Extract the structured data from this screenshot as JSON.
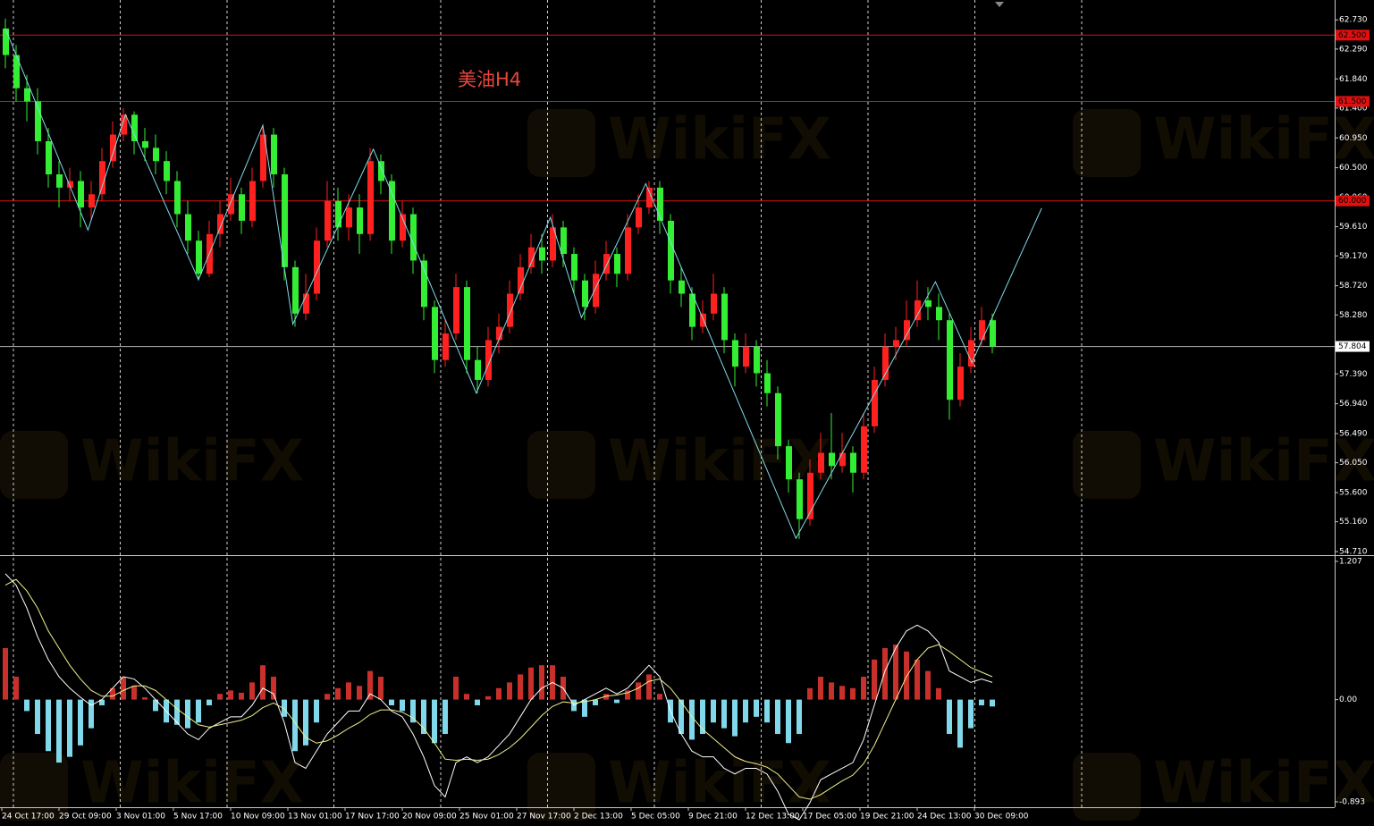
{
  "chart_data": [
    {
      "type": "candlestick",
      "title": "美油H4",
      "watermark": "WikiFX",
      "ylim": [
        54.67,
        63.03
      ],
      "yticks": [
        {
          "value": 62.73,
          "label": "62.730"
        },
        {
          "value": 62.29,
          "label": "62.290"
        },
        {
          "value": 61.84,
          "label": "61.840"
        },
        {
          "value": 61.4,
          "label": "61.400"
        },
        {
          "value": 60.95,
          "label": "60.950"
        },
        {
          "value": 60.5,
          "label": "60.500"
        },
        {
          "value": 60.06,
          "label": "60.060"
        },
        {
          "value": 59.61,
          "label": "59.610"
        },
        {
          "value": 59.17,
          "label": "59.170"
        },
        {
          "value": 58.72,
          "label": "58.720"
        },
        {
          "value": 58.28,
          "label": "58.280"
        },
        {
          "value": 57.39,
          "label": "57.390"
        },
        {
          "value": 56.94,
          "label": "56.940"
        },
        {
          "value": 56.49,
          "label": "56.490"
        },
        {
          "value": 56.05,
          "label": "56.050"
        },
        {
          "value": 55.6,
          "label": "55.600"
        },
        {
          "value": 55.16,
          "label": "55.160"
        },
        {
          "value": 54.71,
          "label": "54.710"
        }
      ],
      "levels": [
        {
          "value": 62.5,
          "label": "62.500"
        },
        {
          "value": 61.5,
          "label": "61.500"
        },
        {
          "value": 60.0,
          "label": "60.000"
        }
      ],
      "level_color": "#e01010",
      "current_price": {
        "value": 57.804,
        "label": "57.804"
      },
      "up_color": "#ff2020",
      "down_color": "#33ee33",
      "open": [
        62.6,
        62.2,
        61.7,
        61.5,
        60.9,
        60.4,
        60.2,
        60.3,
        59.9,
        60.1,
        60.6,
        61.0,
        61.3,
        60.9,
        60.8,
        60.6,
        60.3,
        59.8,
        59.4,
        58.9,
        59.5,
        59.8,
        60.1,
        59.7,
        60.3,
        61.0,
        60.4,
        59.0,
        58.3,
        58.6,
        59.4,
        60.0,
        59.6,
        59.9,
        59.5,
        60.6,
        60.3,
        59.4,
        59.8,
        59.1,
        58.4,
        57.6,
        58.0,
        58.7,
        57.6,
        57.3,
        57.9,
        58.1,
        58.6,
        59.0,
        59.3,
        59.1,
        59.6,
        59.2,
        58.8,
        58.4,
        58.9,
        59.2,
        58.9,
        59.6,
        59.9,
        60.2,
        59.7,
        58.8,
        58.6,
        58.1,
        58.3,
        58.6,
        57.9,
        57.5,
        57.8,
        57.4,
        57.1,
        56.3,
        55.8,
        55.2,
        55.9,
        56.2,
        56.0,
        56.2,
        55.9,
        56.6,
        57.3,
        57.8,
        57.9,
        58.2,
        58.5,
        58.4,
        58.2,
        57.0,
        57.5,
        57.9,
        58.2
      ],
      "high": [
        62.75,
        62.35,
        61.9,
        61.7,
        61.1,
        60.6,
        60.5,
        60.45,
        60.3,
        60.8,
        61.2,
        61.4,
        61.35,
        61.1,
        61.0,
        60.75,
        60.45,
        60.0,
        59.55,
        59.7,
        60.0,
        60.35,
        60.2,
        60.5,
        61.15,
        61.1,
        60.5,
        59.1,
        58.9,
        59.6,
        60.3,
        60.2,
        60.1,
        60.1,
        60.8,
        60.7,
        60.4,
        60.0,
        59.9,
        59.2,
        58.5,
        58.2,
        58.9,
        58.8,
        57.8,
        58.1,
        58.3,
        58.8,
        59.2,
        59.5,
        59.5,
        59.8,
        59.7,
        59.3,
        58.9,
        59.1,
        59.4,
        59.3,
        59.8,
        60.1,
        60.3,
        60.3,
        59.8,
        59.0,
        58.7,
        58.5,
        58.9,
        58.7,
        58.0,
        58.0,
        57.9,
        57.6,
        57.2,
        56.4,
        55.9,
        56.1,
        56.5,
        56.8,
        56.5,
        56.3,
        56.8,
        57.5,
        58.0,
        58.1,
        58.5,
        58.8,
        58.7,
        58.6,
        58.3,
        57.7,
        58.1,
        58.4,
        58.3
      ],
      "low": [
        62.0,
        61.5,
        61.2,
        60.7,
        60.2,
        59.9,
        60.0,
        59.6,
        59.7,
        60.0,
        60.5,
        60.9,
        60.7,
        60.6,
        60.4,
        60.1,
        59.6,
        59.2,
        58.8,
        58.85,
        59.3,
        59.7,
        59.5,
        59.6,
        60.2,
        60.2,
        58.8,
        58.1,
        58.2,
        58.5,
        59.3,
        59.4,
        59.4,
        59.2,
        59.4,
        60.1,
        59.2,
        59.3,
        58.9,
        58.2,
        57.4,
        57.5,
        57.9,
        57.4,
        57.1,
        57.2,
        57.7,
        58.0,
        58.5,
        58.9,
        58.9,
        59.0,
        59.0,
        58.6,
        58.2,
        58.3,
        58.8,
        58.7,
        58.8,
        59.5,
        59.8,
        59.5,
        58.6,
        58.4,
        57.9,
        58.0,
        58.2,
        57.7,
        57.2,
        57.4,
        57.2,
        56.9,
        56.1,
        55.6,
        54.9,
        55.1,
        55.8,
        55.8,
        55.9,
        55.6,
        55.8,
        56.5,
        57.2,
        57.6,
        57.8,
        58.1,
        58.2,
        57.9,
        56.7,
        56.9,
        57.4,
        57.8,
        57.7
      ],
      "close": [
        62.2,
        61.7,
        61.5,
        60.9,
        60.4,
        60.2,
        60.3,
        59.9,
        60.1,
        60.6,
        61.0,
        61.3,
        60.9,
        60.8,
        60.6,
        60.3,
        59.8,
        59.4,
        58.9,
        59.5,
        59.8,
        60.1,
        59.7,
        60.3,
        61.0,
        60.4,
        59.0,
        58.3,
        58.6,
        59.4,
        60.0,
        59.6,
        59.9,
        59.5,
        60.6,
        60.3,
        59.4,
        59.8,
        59.1,
        58.4,
        57.6,
        58.0,
        58.7,
        57.6,
        57.3,
        57.9,
        58.1,
        58.6,
        59.0,
        59.3,
        59.1,
        59.6,
        59.2,
        58.8,
        58.4,
        58.9,
        59.2,
        58.9,
        59.6,
        59.9,
        60.2,
        59.7,
        58.8,
        58.6,
        58.1,
        58.3,
        58.6,
        57.9,
        57.5,
        57.8,
        57.4,
        57.1,
        56.3,
        55.8,
        55.2,
        55.9,
        56.2,
        56.0,
        56.2,
        55.9,
        56.6,
        57.3,
        57.8,
        57.9,
        58.2,
        58.5,
        58.4,
        58.2,
        57.0,
        57.5,
        57.9,
        58.2,
        57.804
      ],
      "zigzag": {
        "color": "#80dcea",
        "x": [
          0,
          7.7,
          11.2,
          18,
          24,
          26.8,
          34.3,
          43.9,
          50.8,
          53.7,
          59.7,
          73.7,
          86.7,
          90.1,
          96.6
        ],
        "values": [
          62.6,
          59.56,
          61.3,
          58.81,
          61.14,
          58.14,
          60.78,
          57.1,
          59.75,
          58.24,
          60.26,
          54.91,
          58.78,
          57.56,
          59.89
        ]
      }
    },
    {
      "type": "macd",
      "ylim": [
        -0.94,
        1.254
      ],
      "yticks": [
        {
          "value": 1.207,
          "label": "1.207"
        },
        {
          "value": 0,
          "label": "0.00"
        },
        {
          "value": -0.893,
          "label": "-0.893"
        }
      ],
      "pos_color": "#c8302c",
      "neg_color": "#80d8ea",
      "histogram": [
        0.45,
        0.2,
        -0.1,
        -0.3,
        -0.45,
        -0.55,
        -0.5,
        -0.4,
        -0.25,
        -0.05,
        0.1,
        0.2,
        0.12,
        0.02,
        -0.1,
        -0.2,
        -0.22,
        -0.25,
        -0.2,
        -0.05,
        0.05,
        0.08,
        0.06,
        0.15,
        0.3,
        0.2,
        -0.15,
        -0.45,
        -0.4,
        -0.2,
        0.05,
        0.1,
        0.15,
        0.12,
        0.25,
        0.2,
        -0.05,
        -0.1,
        -0.2,
        -0.3,
        -0.38,
        -0.3,
        0.2,
        0.05,
        -0.05,
        0.03,
        0.1,
        0.15,
        0.22,
        0.28,
        0.3,
        0.3,
        0.2,
        -0.1,
        -0.15,
        -0.05,
        0.05,
        -0.03,
        0.08,
        0.15,
        0.22,
        0.05,
        -0.2,
        -0.3,
        -0.35,
        -0.3,
        -0.2,
        -0.25,
        -0.32,
        -0.2,
        -0.15,
        -0.2,
        -0.3,
        -0.38,
        -0.3,
        0.1,
        0.2,
        0.15,
        0.12,
        0.1,
        0.2,
        0.35,
        0.45,
        0.48,
        0.42,
        0.35,
        0.25,
        0.1,
        -0.3,
        -0.42,
        -0.25,
        -0.05,
        -0.06
      ],
      "macd_line": {
        "color": "#ffffff",
        "values": [
          1.1,
          1.0,
          0.8,
          0.55,
          0.35,
          0.2,
          0.1,
          0.02,
          -0.05,
          0.0,
          0.1,
          0.2,
          0.18,
          0.1,
          0.0,
          -0.1,
          -0.2,
          -0.3,
          -0.35,
          -0.25,
          -0.2,
          -0.15,
          -0.15,
          -0.05,
          0.1,
          0.05,
          -0.2,
          -0.55,
          -0.6,
          -0.45,
          -0.3,
          -0.2,
          -0.1,
          -0.1,
          0.05,
          0.0,
          -0.1,
          -0.15,
          -0.3,
          -0.5,
          -0.75,
          -0.85,
          -0.55,
          -0.5,
          -0.55,
          -0.5,
          -0.4,
          -0.3,
          -0.15,
          0.0,
          0.1,
          0.15,
          0.1,
          -0.05,
          0.0,
          0.05,
          0.1,
          0.05,
          0.1,
          0.2,
          0.3,
          0.2,
          -0.1,
          -0.3,
          -0.45,
          -0.5,
          -0.5,
          -0.6,
          -0.65,
          -0.6,
          -0.6,
          -0.65,
          -0.8,
          -1.0,
          -1.05,
          -0.9,
          -0.7,
          -0.65,
          -0.6,
          -0.55,
          -0.35,
          -0.05,
          0.25,
          0.45,
          0.6,
          0.65,
          0.6,
          0.5,
          0.25,
          0.2,
          0.15,
          0.18,
          0.15
        ]
      },
      "signal_line": {
        "color": "#f2f08a",
        "values": [
          1.0,
          1.05,
          0.95,
          0.8,
          0.6,
          0.45,
          0.3,
          0.18,
          0.08,
          0.03,
          0.03,
          0.08,
          0.12,
          0.12,
          0.08,
          0.0,
          -0.08,
          -0.15,
          -0.22,
          -0.24,
          -0.22,
          -0.2,
          -0.18,
          -0.14,
          -0.07,
          -0.03,
          -0.08,
          -0.2,
          -0.33,
          -0.38,
          -0.36,
          -0.31,
          -0.25,
          -0.2,
          -0.13,
          -0.09,
          -0.09,
          -0.11,
          -0.16,
          -0.25,
          -0.38,
          -0.52,
          -0.53,
          -0.52,
          -0.53,
          -0.52,
          -0.48,
          -0.42,
          -0.34,
          -0.24,
          -0.14,
          -0.06,
          -0.02,
          -0.03,
          -0.02,
          0.0,
          0.03,
          0.04,
          0.06,
          0.1,
          0.16,
          0.18,
          0.1,
          -0.02,
          -0.15,
          -0.26,
          -0.34,
          -0.42,
          -0.5,
          -0.54,
          -0.56,
          -0.59,
          -0.65,
          -0.75,
          -0.85,
          -0.87,
          -0.83,
          -0.77,
          -0.71,
          -0.66,
          -0.56,
          -0.4,
          -0.2,
          0.0,
          0.2,
          0.35,
          0.45,
          0.48,
          0.42,
          0.35,
          0.28,
          0.24,
          0.2
        ]
      },
      "xlabels": [
        "24 Oct 17:00",
        "29 Oct 09:00",
        "3 Nov 01:00",
        "5 Nov 17:00",
        "10 Nov 09:00",
        "13 Nov 01:00",
        "17 Nov 17:00",
        "20 Nov 09:00",
        "25 Nov 01:00",
        "27 Nov 17:00",
        "2 Dec 13:00",
        "5 Dec 05:00",
        "9 Dec 21:00",
        "12 Dec 13:00",
        "17 Dec 05:00",
        "19 Dec 21:00",
        "24 Dec 13:00",
        "30 Dec 09:00"
      ]
    }
  ]
}
